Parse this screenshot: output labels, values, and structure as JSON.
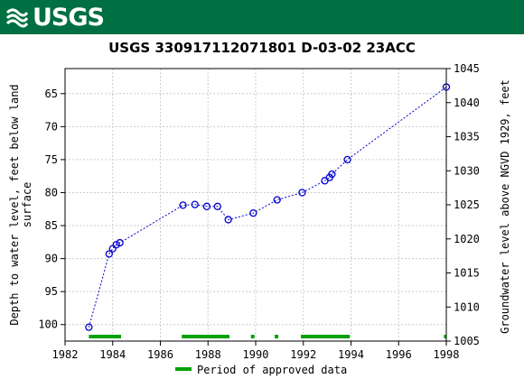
{
  "header": {
    "agency": "USGS"
  },
  "chart_data": {
    "type": "scatter",
    "title": "USGS 330917112071801 D-03-02 23ACC",
    "xlabel": "",
    "ylabel_left": "Depth to water level, feet below land surface",
    "ylabel_right": "Groundwater level above NGVD 1929, feet",
    "xlim": [
      1982,
      1998
    ],
    "ylim_left": [
      102.5,
      61.2
    ],
    "ylim_right": [
      1005,
      1045
    ],
    "inverted_left_axis": true,
    "x_ticks": [
      1982,
      1984,
      1986,
      1988,
      1990,
      1992,
      1994,
      1996,
      1998
    ],
    "y_ticks_left": [
      65,
      70,
      75,
      80,
      85,
      90,
      95,
      100
    ],
    "y_ticks_right": [
      1005,
      1010,
      1015,
      1020,
      1025,
      1030,
      1035,
      1040,
      1045
    ],
    "series": [
      {
        "color": "#0000cc",
        "marker": "open-circle",
        "line": "dotted",
        "points": [
          [
            1983.0,
            100.4
          ],
          [
            1983.85,
            89.3
          ],
          [
            1984.0,
            88.5
          ],
          [
            1984.15,
            87.9
          ],
          [
            1984.3,
            87.6
          ],
          [
            1986.95,
            81.9
          ],
          [
            1987.45,
            81.8
          ],
          [
            1987.95,
            82.1
          ],
          [
            1988.4,
            82.1
          ],
          [
            1988.85,
            84.1
          ],
          [
            1989.9,
            83.1
          ],
          [
            1990.9,
            81.1
          ],
          [
            1991.95,
            80.0
          ],
          [
            1992.9,
            78.2
          ],
          [
            1993.1,
            77.7
          ],
          [
            1993.2,
            77.2
          ],
          [
            1993.85,
            75.0
          ],
          [
            1998.0,
            64.0
          ]
        ]
      }
    ],
    "approved_periods": [
      [
        1983.0,
        1984.35
      ],
      [
        1986.9,
        1988.9
      ],
      [
        1989.8,
        1989.95
      ],
      [
        1990.8,
        1990.95
      ],
      [
        1991.9,
        1993.95
      ],
      [
        1997.9,
        1998.0
      ]
    ],
    "legend": {
      "label": "Period of approved data",
      "color": "#00a000",
      "placement": "bottom"
    },
    "grid": true
  }
}
